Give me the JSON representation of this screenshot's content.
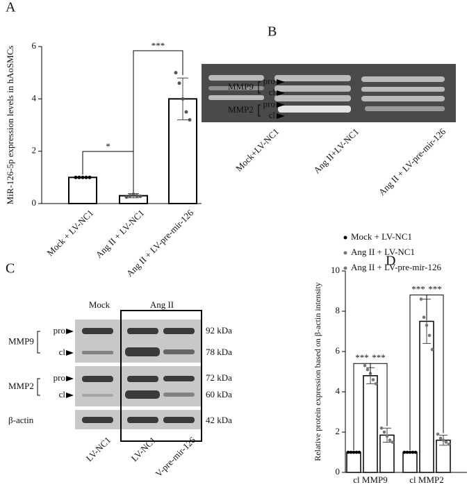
{
  "chart_data": [
    {
      "type": "bar",
      "panel": "A",
      "ylabel": "MiR-126-5p expression levels in hAoSMCs",
      "categories": [
        "Mock + LV-NC1",
        "Ang II + LV-NC1",
        "Ang II + LV-pre-mir-126"
      ],
      "values": [
        1.0,
        0.3,
        4.0
      ],
      "errors": [
        0.02,
        0.08,
        0.8
      ],
      "points": [
        [
          1,
          1,
          1,
          1,
          1
        ],
        [
          0.25,
          0.3,
          0.35,
          0.3,
          0.28
        ],
        [
          5.0,
          4.6,
          4.0,
          3.5,
          3.2
        ]
      ],
      "color": "#ffffff",
      "ylim": [
        0,
        6
      ],
      "yticks": [
        0,
        2,
        4,
        6
      ],
      "annotations": [
        "*",
        "***"
      ]
    },
    {
      "type": "grouped_bar",
      "panel": "D",
      "ylabel": "Relative protein expression based on β-actin intensity",
      "categories": [
        "cl MMP9",
        "cl MMP2"
      ],
      "series": [
        {
          "name": "Mock + LV-NC1",
          "color": "#000000",
          "values": [
            1.0,
            1.0
          ],
          "errors": [
            0.02,
            0.02
          ],
          "points": [
            [
              1,
              1,
              1,
              1,
              1
            ],
            [
              1,
              1,
              1,
              1,
              1
            ]
          ]
        },
        {
          "name": "Ang II + LV-NC1",
          "color": "#777777",
          "values": [
            4.8,
            7.5
          ],
          "errors": [
            0.4,
            1.1
          ],
          "points": [
            [
              5.3,
              5.1,
              4.9,
              4.6,
              4.4
            ],
            [
              8.6,
              7.7,
              7.3,
              6.8,
              6.1
            ]
          ]
        },
        {
          "name": "Ang II + LV-pre-mir-126",
          "color": "#777777",
          "values": [
            1.85,
            1.6
          ],
          "errors": [
            0.35,
            0.25
          ],
          "points": [
            [
              2.2,
              2.0,
              1.8,
              1.6,
              1.5
            ],
            [
              1.9,
              1.7,
              1.6,
              1.5,
              1.4
            ]
          ]
        }
      ],
      "ylim": [
        0,
        10
      ],
      "yticks": [
        0,
        2,
        4,
        6,
        8,
        10
      ],
      "annotations": [
        "***",
        "***",
        "***",
        "***"
      ]
    }
  ],
  "gel": {
    "panel": "B",
    "proteins": [
      "MMP9",
      "MMP2"
    ],
    "bands": [
      "pro",
      "cl"
    ],
    "lanes": [
      "Mock+LV-NC1",
      "Ang II+LV-NC1",
      "Ang II + LV-pre-mir-126"
    ]
  },
  "blot": {
    "panel": "C",
    "groups": [
      "Mock",
      "Ang II"
    ],
    "rows": [
      {
        "protein": "MMP9",
        "bands": [
          "pro",
          "cl"
        ],
        "sizes": [
          "92 kDa",
          "78 kDa"
        ]
      },
      {
        "protein": "MMP2",
        "bands": [
          "pro",
          "cl"
        ],
        "sizes": [
          "72 kDa",
          "60 kDa"
        ]
      }
    ],
    "control": "β-actin",
    "control_size": "42 kDa",
    "lanes": [
      "LV-NC1",
      "LV-NC1",
      "V-pre-mir-126"
    ]
  }
}
